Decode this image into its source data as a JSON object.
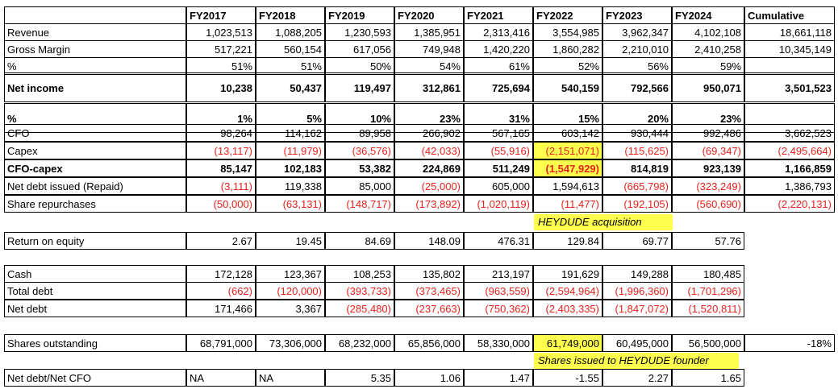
{
  "columns": [
    "FY2017",
    "FY2018",
    "FY2019",
    "FY2020",
    "FY2021",
    "FY2022",
    "FY2023",
    "FY2024",
    "Cumulative"
  ],
  "rows": [
    {
      "label": "Revenue",
      "values": [
        "1,023,513",
        "1,088,205",
        "1,230,593",
        "1,385,951",
        "2,313,416",
        "3,554,985",
        "3,962,347",
        "4,102,108",
        "18,661,118"
      ]
    },
    {
      "label": "Gross Margin",
      "values": [
        "517,221",
        "560,154",
        "617,056",
        "749,948",
        "1,420,220",
        "1,860,282",
        "2,210,010",
        "2,410,258",
        "10,345,149"
      ]
    },
    {
      "label": "%",
      "values": [
        "51%",
        "51%",
        "50%",
        "54%",
        "61%",
        "52%",
        "56%",
        "59%",
        ""
      ]
    },
    {
      "label": "Net income",
      "values": [
        "10,238",
        "50,437",
        "119,497",
        "312,861",
        "725,694",
        "540,159",
        "792,566",
        "950,071",
        "3,501,523"
      ]
    },
    {
      "label": "%",
      "values": [
        "1%",
        "5%",
        "10%",
        "23%",
        "31%",
        "15%",
        "20%",
        "23%",
        ""
      ]
    },
    {
      "label": "CFO",
      "values": [
        "98,264",
        "114,162",
        "89,958",
        "266,902",
        "567,165",
        "603,142",
        "930,444",
        "992,486",
        "3,662,523"
      ]
    },
    {
      "label": "Capex",
      "values": [
        "(13,117)",
        "(11,979)",
        "(36,576)",
        "(42,033)",
        "(55,916)",
        "(2,151,071)",
        "(115,625)",
        "(69,347)",
        "(2,495,664)"
      ]
    },
    {
      "label": "CFO-capex",
      "values": [
        "85,147",
        "102,183",
        "53,382",
        "224,869",
        "511,249",
        "(1,547,929)",
        "814,819",
        "923,139",
        "1,166,859"
      ]
    },
    {
      "label": "Net debt issued (Repaid)",
      "values": [
        "(3,111)",
        "119,338",
        "85,000",
        "(25,000)",
        "605,000",
        "1,594,613",
        "(665,798)",
        "(323,249)",
        "1,386,793"
      ]
    },
    {
      "label": "Share repurchases",
      "values": [
        "(50,000)",
        "(63,131)",
        "(148,717)",
        "(173,892)",
        "(1,020,119)",
        "(11,477)",
        "(192,105)",
        "(560,690)",
        "(2,220,131)"
      ]
    },
    {
      "label": "Return on equity",
      "values": [
        "2.67",
        "19.45",
        "84.69",
        "148.09",
        "476.31",
        "129.84",
        "69.77",
        "57.76"
      ]
    },
    {
      "label": "Cash",
      "values": [
        "172,128",
        "123,367",
        "108,253",
        "135,802",
        "213,197",
        "191,629",
        "149,288",
        "180,485"
      ]
    },
    {
      "label": "Total debt",
      "values": [
        "(662)",
        "(120,000)",
        "(393,733)",
        "(373,465)",
        "(963,559)",
        "(2,594,964)",
        "(1,996,360)",
        "(1,701,296)"
      ]
    },
    {
      "label": "Net debt",
      "values": [
        "171,466",
        "3,367",
        "(285,480)",
        "(237,663)",
        "(750,362)",
        "(2,403,335)",
        "(1,847,072)",
        "(1,520,811)"
      ]
    },
    {
      "label": "Shares outstanding",
      "values": [
        "68,791,000",
        "73,306,000",
        "68,232,000",
        "65,856,000",
        "58,330,000",
        "61,749,000",
        "60,495,000",
        "56,500,000",
        "-18%"
      ]
    },
    {
      "label": "Net debt/Net CFO",
      "values": [
        "NA",
        "NA",
        "5.35",
        "1.06",
        "1.47",
        "-1.55",
        "2.27",
        "1.65"
      ]
    }
  ],
  "notes": {
    "acquisition": "HEYDUDE acquisition",
    "founder": "Shares issued to HEYDUDE founder"
  },
  "colors": {
    "negative": "#e8211b",
    "highlight": "#ffff4d"
  }
}
